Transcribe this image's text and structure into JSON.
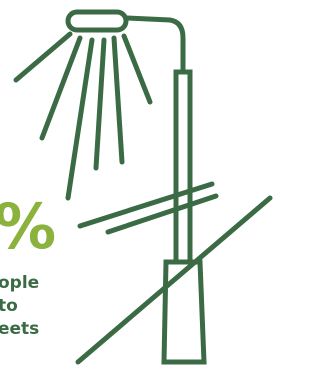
{
  "stat": {
    "symbol": "%",
    "lines": [
      "ople",
      "to",
      "eets"
    ]
  }
}
